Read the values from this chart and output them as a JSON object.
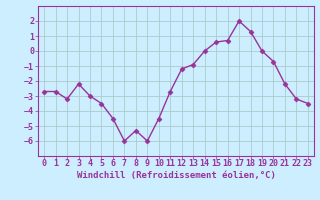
{
  "x": [
    0,
    1,
    2,
    3,
    4,
    5,
    6,
    7,
    8,
    9,
    10,
    11,
    12,
    13,
    14,
    15,
    16,
    17,
    18,
    19,
    20,
    21,
    22,
    23
  ],
  "y": [
    -2.7,
    -2.7,
    -3.2,
    -2.2,
    -3.0,
    -3.5,
    -4.5,
    -6.0,
    -5.3,
    -6.0,
    -4.5,
    -2.7,
    -1.2,
    -0.9,
    0.0,
    0.6,
    0.7,
    2.0,
    1.3,
    0.0,
    -0.7,
    -2.2,
    -3.2,
    -3.5
  ],
  "line_color": "#993399",
  "marker": "D",
  "marker_size": 2.5,
  "bg_color": "#cceeff",
  "grid_color": "#aacccc",
  "xlabel": "Windchill (Refroidissement éolien,°C)",
  "ylim": [
    -7,
    3
  ],
  "xlim": [
    -0.5,
    23.5
  ],
  "yticks": [
    -6,
    -5,
    -4,
    -3,
    -2,
    -1,
    0,
    1,
    2
  ],
  "xticks": [
    0,
    1,
    2,
    3,
    4,
    5,
    6,
    7,
    8,
    9,
    10,
    11,
    12,
    13,
    14,
    15,
    16,
    17,
    18,
    19,
    20,
    21,
    22,
    23
  ],
  "tick_color": "#993399",
  "xlabel_fontsize": 6.5,
  "tick_fontsize": 6.0,
  "line_width": 1.0
}
